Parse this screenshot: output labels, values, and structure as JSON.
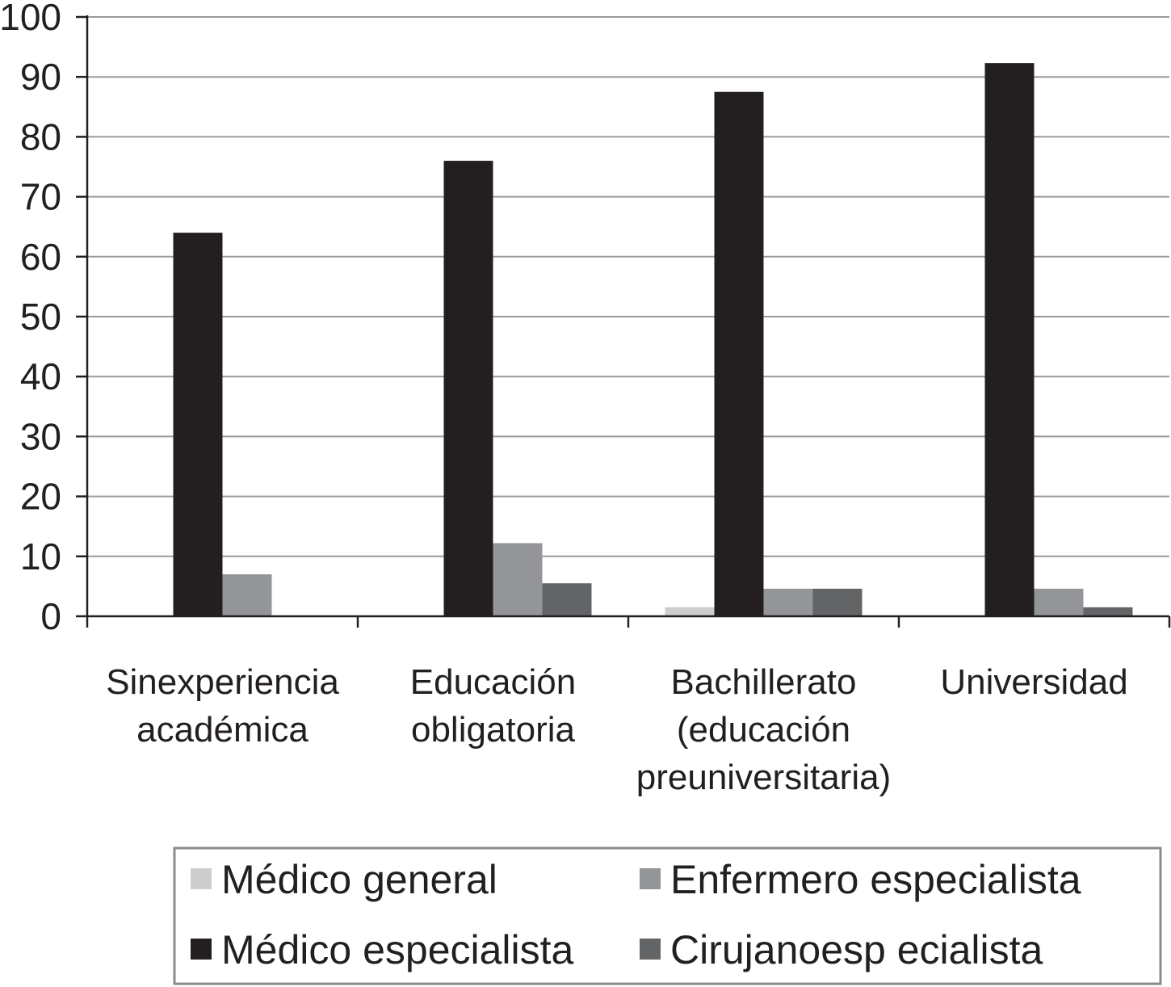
{
  "chart_data": {
    "type": "bar",
    "ylim": [
      0,
      100
    ],
    "yticks": [
      0,
      10,
      20,
      30,
      40,
      50,
      60,
      70,
      80,
      90,
      100
    ],
    "grid": true,
    "legend_position": "bottom",
    "categories": [
      [
        "Sinexperiencia",
        "académica"
      ],
      [
        "Educación",
        "obligatoria"
      ],
      [
        "Bachillerato",
        "(educación",
        "preuniversitaria)"
      ],
      [
        "Universidad"
      ]
    ],
    "series": [
      {
        "name": "Médico general",
        "color": "#cdcdcd",
        "values": [
          0,
          0,
          1.5,
          0
        ]
      },
      {
        "name": "Médico especialista",
        "color": "#231f20",
        "values": [
          64,
          76,
          87.5,
          92.3
        ]
      },
      {
        "name": "Enfermero especialista",
        "color": "#939598",
        "values": [
          7,
          12.2,
          4.6,
          4.6
        ]
      },
      {
        "name": "Cirujanoesp ecialista",
        "color": "#636466",
        "values": [
          0,
          5.5,
          4.6,
          1.5
        ]
      }
    ],
    "legend_order": [
      0,
      2,
      1,
      3
    ]
  }
}
